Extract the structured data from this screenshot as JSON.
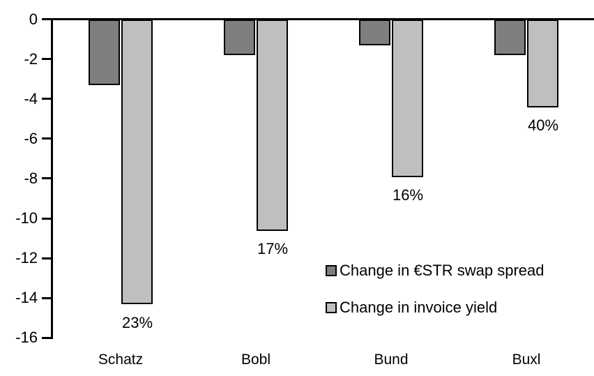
{
  "chart_data": {
    "type": "bar",
    "title": "",
    "xlabel": "",
    "ylabel": "",
    "categories": [
      "Schatz",
      "Bobl",
      "Bund",
      "Buxl"
    ],
    "series": [
      {
        "name": "Change in €STR swap spread",
        "color": "#7F7F7F",
        "values": [
          -3.3,
          -1.8,
          -1.3,
          -1.8
        ]
      },
      {
        "name": "Change in invoice yield",
        "color": "#BFBFBF",
        "values": [
          -14.3,
          -10.6,
          -7.9,
          -4.4
        ],
        "data_labels": [
          "23%",
          "17%",
          "16%",
          "40%"
        ]
      }
    ],
    "ylim": [
      -16,
      0
    ],
    "ytick_step": 2,
    "ytick_labels": [
      "0",
      "-2",
      "-4",
      "-6",
      "-8",
      "-10",
      "-12",
      "-14",
      "-16"
    ],
    "grid": false,
    "legend_position": "inside-right",
    "axis_color": "#000000",
    "bar_border_color": "#000000",
    "background_color": "#FFFFFF"
  }
}
